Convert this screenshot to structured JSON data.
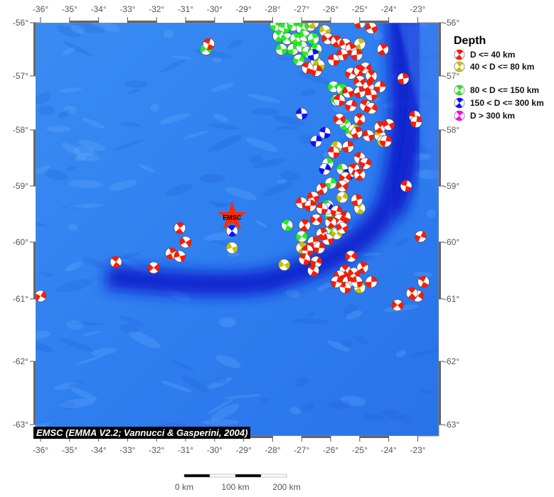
{
  "map": {
    "lon_ticks": [
      -36,
      -35,
      -34,
      -33,
      -32,
      -31,
      -30,
      -29,
      -28,
      -27,
      -26,
      -25,
      -24,
      -23
    ],
    "lat_ticks": [
      -56,
      -57,
      -58,
      -59,
      -60,
      -61,
      -62,
      -63
    ],
    "credit": "EMSC (EMMA V2.2; Vannucci & Gasperini, 2004)",
    "epicenter": {
      "label": "EMSC",
      "lon": -29.4,
      "lat": -59.55,
      "color": "#ff2a00"
    },
    "ocean_color": "#2f80f0",
    "trench_color": "#0a1ecc"
  },
  "legend": {
    "title": "Depth",
    "items": [
      {
        "label": "D <= 40 km",
        "color": "#ff1a00"
      },
      {
        "label": "40 < D <= 80 km",
        "color": "#c8c000"
      },
      {
        "label": "80 < D <= 150 km",
        "color": "#22ee22"
      },
      {
        "label": "150 < D <= 300 km",
        "color": "#1010ff"
      },
      {
        "label": "D > 300 km",
        "color": "#ff00ff"
      }
    ]
  },
  "scale_bar": {
    "labels": [
      "0 km",
      "100 km",
      "200 km"
    ]
  },
  "events": {
    "green": [
      [
        -27.9,
        -56.05
      ],
      [
        -27.6,
        -56.1
      ],
      [
        -27.3,
        -56.05
      ],
      [
        -27.0,
        -56.1
      ],
      [
        -26.7,
        -56.05
      ],
      [
        -27.8,
        -56.25
      ],
      [
        -27.5,
        -56.3
      ],
      [
        -27.2,
        -56.3
      ],
      [
        -26.9,
        -56.25
      ],
      [
        -26.6,
        -56.3
      ],
      [
        -27.7,
        -56.5
      ],
      [
        -27.3,
        -56.5
      ],
      [
        -27.0,
        -56.45
      ],
      [
        -26.8,
        -56.55
      ],
      [
        -26.5,
        -56.5
      ],
      [
        -27.1,
        -56.7
      ],
      [
        -26.5,
        -56.75
      ],
      [
        -25.9,
        -57.2
      ],
      [
        -25.6,
        -57.25
      ],
      [
        -25.8,
        -57.45
      ],
      [
        -25.5,
        -57.9
      ],
      [
        -25.3,
        -58.05
      ],
      [
        -26.1,
        -58.6
      ],
      [
        -25.6,
        -58.7
      ],
      [
        -26.0,
        -58.95
      ],
      [
        -26.1,
        -59.35
      ],
      [
        -26.0,
        -59.55
      ],
      [
        -27.5,
        -59.7
      ],
      [
        -27.0,
        -59.9
      ],
      [
        -26.0,
        -59.8
      ],
      [
        -30.3,
        -56.5
      ]
    ],
    "yellow": [
      [
        -26.6,
        -56.0
      ],
      [
        -26.2,
        -56.15
      ],
      [
        -25.0,
        -56.4
      ],
      [
        -26.4,
        -56.8
      ],
      [
        -25.2,
        -58.0
      ],
      [
        -24.3,
        -58.1
      ],
      [
        -24.2,
        -58.2
      ],
      [
        -25.8,
        -58.3
      ],
      [
        -25.6,
        -59.2
      ],
      [
        -25.0,
        -59.4
      ],
      [
        -25.8,
        -59.85
      ],
      [
        -27.0,
        -60.1
      ],
      [
        -27.6,
        -60.4
      ],
      [
        -25.0,
        -60.8
      ],
      [
        -29.4,
        -60.1
      ]
    ],
    "blue": [
      [
        -26.6,
        -56.6
      ],
      [
        -27.0,
        -57.7
      ],
      [
        -26.5,
        -58.2
      ],
      [
        -26.2,
        -58.05
      ],
      [
        -26.2,
        -58.7
      ],
      [
        -25.4,
        -58.8
      ],
      [
        -26.1,
        -59.4
      ],
      [
        -29.4,
        -59.8
      ]
    ],
    "red": [
      [
        -26.1,
        -56.3
      ],
      [
        -25.8,
        -56.35
      ],
      [
        -25.5,
        -56.4
      ],
      [
        -25.3,
        -56.5
      ],
      [
        -25.6,
        -56.6
      ],
      [
        -25.1,
        -56.6
      ],
      [
        -25.9,
        -56.7
      ],
      [
        -26.5,
        -56.9
      ],
      [
        -26.8,
        -56.85
      ],
      [
        -25.3,
        -56.95
      ],
      [
        -25.0,
        -56.9
      ],
      [
        -24.8,
        -56.85
      ],
      [
        -24.6,
        -57.0
      ],
      [
        -25.0,
        -57.1
      ],
      [
        -24.7,
        -57.2
      ],
      [
        -25.4,
        -57.3
      ],
      [
        -25.0,
        -57.3
      ],
      [
        -24.6,
        -57.35
      ],
      [
        -24.3,
        -57.2
      ],
      [
        -25.7,
        -57.45
      ],
      [
        -25.3,
        -57.55
      ],
      [
        -24.8,
        -57.55
      ],
      [
        -24.6,
        -57.6
      ],
      [
        -25.0,
        -57.8
      ],
      [
        -25.7,
        -57.8
      ],
      [
        -24.3,
        -57.95
      ],
      [
        -24.0,
        -57.9
      ],
      [
        -25.1,
        -58.05
      ],
      [
        -24.7,
        -58.1
      ],
      [
        -25.4,
        -58.3
      ],
      [
        -25.9,
        -58.4
      ],
      [
        -24.1,
        -58.2
      ],
      [
        -25.0,
        -58.5
      ],
      [
        -24.8,
        -58.6
      ],
      [
        -25.2,
        -58.7
      ],
      [
        -25.5,
        -58.85
      ],
      [
        -25.0,
        -58.8
      ],
      [
        -25.6,
        -59.0
      ],
      [
        -26.3,
        -59.05
      ],
      [
        -26.6,
        -59.2
      ],
      [
        -25.1,
        -59.25
      ],
      [
        -27.0,
        -59.3
      ],
      [
        -26.7,
        -59.35
      ],
      [
        -26.3,
        -59.4
      ],
      [
        -25.8,
        -59.45
      ],
      [
        -25.5,
        -59.55
      ],
      [
        -25.7,
        -59.6
      ],
      [
        -26.0,
        -59.65
      ],
      [
        -26.5,
        -59.6
      ],
      [
        -26.9,
        -59.7
      ],
      [
        -25.6,
        -59.75
      ],
      [
        -26.3,
        -59.85
      ],
      [
        -26.1,
        -59.95
      ],
      [
        -26.6,
        -60.0
      ],
      [
        -26.8,
        -60.15
      ],
      [
        -26.4,
        -60.1
      ],
      [
        -26.9,
        -60.3
      ],
      [
        -26.5,
        -60.35
      ],
      [
        -26.6,
        -60.5
      ],
      [
        -25.3,
        -60.25
      ],
      [
        -25.5,
        -60.5
      ],
      [
        -25.2,
        -60.55
      ],
      [
        -24.9,
        -60.45
      ],
      [
        -25.7,
        -60.6
      ],
      [
        -25.4,
        -60.7
      ],
      [
        -25.1,
        -60.7
      ],
      [
        -24.6,
        -60.7
      ],
      [
        -25.5,
        -60.8
      ],
      [
        -25.8,
        -60.7
      ],
      [
        -30.2,
        -56.4
      ],
      [
        -36.0,
        -60.95
      ],
      [
        -33.4,
        -60.35
      ],
      [
        -32.1,
        -60.45
      ],
      [
        -31.2,
        -59.75
      ],
      [
        -31.0,
        -60.0
      ],
      [
        -31.5,
        -60.2
      ],
      [
        -31.2,
        -60.25
      ],
      [
        -23.5,
        -57.05
      ],
      [
        -23.1,
        -57.75
      ],
      [
        -23.05,
        -57.85
      ],
      [
        -23.4,
        -59.0
      ],
      [
        -22.9,
        -59.9
      ],
      [
        -22.8,
        -60.7
      ],
      [
        -23.0,
        -60.95
      ],
      [
        -23.2,
        -60.9
      ],
      [
        -23.7,
        -61.1
      ],
      [
        -24.2,
        -56.5
      ],
      [
        -24.6,
        -56.1
      ],
      [
        -25.0,
        -56.0
      ]
    ]
  }
}
